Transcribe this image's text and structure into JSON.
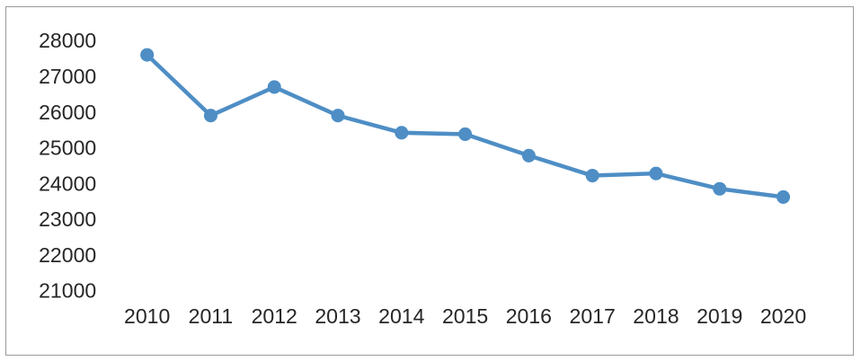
{
  "chart_data": {
    "type": "line",
    "title": "",
    "xlabel": "",
    "ylabel": "",
    "categories": [
      "2010",
      "2011",
      "2012",
      "2013",
      "2014",
      "2015",
      "2016",
      "2017",
      "2018",
      "2019",
      "2020"
    ],
    "values": [
      27600,
      25900,
      26700,
      25900,
      25420,
      25380,
      24780,
      24220,
      24280,
      23850,
      23620
    ],
    "ylim": [
      21000,
      28000
    ],
    "yticks": [
      21000,
      22000,
      23000,
      24000,
      25000,
      26000,
      27000,
      28000
    ],
    "grid": false,
    "legend": null,
    "style": {
      "line_color": "#4e8ec5",
      "marker": "circle",
      "marker_size": 7.5,
      "line_width": 4.5,
      "axis_text_color": "#262626",
      "frame_border_color": "#999999",
      "background": "#ffffff"
    }
  }
}
